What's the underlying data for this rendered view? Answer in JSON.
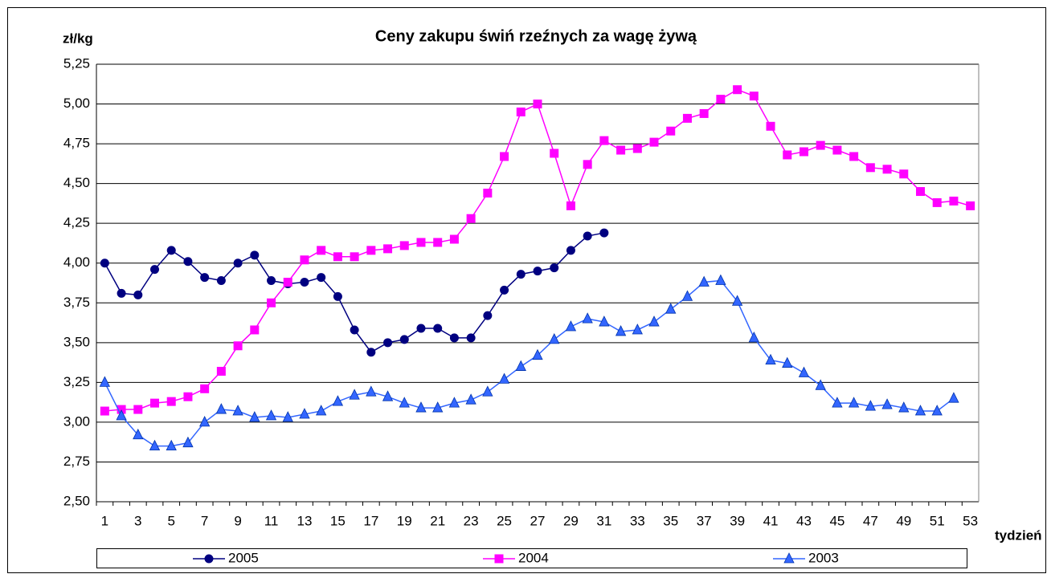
{
  "chart_data": {
    "type": "line",
    "title": "Ceny zakupu świń rzeźnych za wagę żywą",
    "y_label": "zł/kg",
    "x_label": "tydzień",
    "categories": [
      1,
      null,
      3,
      null,
      5,
      null,
      7,
      null,
      9,
      null,
      11,
      null,
      13,
      null,
      15,
      null,
      17,
      null,
      19,
      null,
      21,
      null,
      23,
      null,
      25,
      null,
      27,
      null,
      29,
      null,
      31,
      null,
      33,
      null,
      35,
      null,
      37,
      null,
      39,
      null,
      41,
      null,
      43,
      null,
      45,
      null,
      47,
      null,
      49,
      null,
      51,
      null,
      53
    ],
    "ylim": [
      2.5,
      5.25
    ],
    "yticks": [
      {
        "value": 2.5,
        "label": "2,50"
      },
      {
        "value": 2.75,
        "label": "2,75"
      },
      {
        "value": 3,
        "label": "3,00"
      },
      {
        "value": 3.25,
        "label": "3,25"
      },
      {
        "value": 3.5,
        "label": "3,50"
      },
      {
        "value": 3.75,
        "label": "3,75"
      },
      {
        "value": 4,
        "label": "4,00"
      },
      {
        "value": 4.25,
        "label": "4,25"
      },
      {
        "value": 4.5,
        "label": "4,50"
      },
      {
        "value": 4.75,
        "label": "4,75"
      },
      {
        "value": 5,
        "label": "5,00"
      },
      {
        "value": 5.25,
        "label": "5,25"
      }
    ],
    "grid": true,
    "legend": "bottom",
    "series": [
      {
        "name": "2005",
        "color": "#000080",
        "marker": "circle",
        "values": [
          4.0,
          3.81,
          3.8,
          3.96,
          4.08,
          4.01,
          3.91,
          3.89,
          4.0,
          4.05,
          3.89,
          3.87,
          3.88,
          3.91,
          3.79,
          3.58,
          3.44,
          3.5,
          3.52,
          3.59,
          3.59,
          3.53,
          3.53,
          3.67,
          3.83,
          3.93,
          3.95,
          3.97,
          4.08,
          4.17,
          4.19,
          null,
          null,
          null,
          null,
          null,
          null,
          null,
          null,
          null,
          null,
          null,
          null,
          null,
          null,
          null,
          null,
          null,
          null,
          null,
          null,
          null,
          null
        ]
      },
      {
        "name": "2004",
        "color": "#ff00ff",
        "marker": "square",
        "values": [
          3.07,
          3.08,
          3.08,
          3.12,
          3.13,
          3.16,
          3.21,
          3.32,
          3.48,
          3.58,
          3.75,
          3.88,
          4.02,
          4.08,
          4.04,
          4.04,
          4.08,
          4.09,
          4.11,
          4.13,
          4.13,
          4.15,
          4.28,
          4.44,
          4.67,
          4.95,
          5.0,
          4.69,
          4.36,
          4.62,
          4.77,
          4.71,
          4.72,
          4.76,
          4.83,
          4.91,
          4.94,
          5.03,
          5.09,
          5.05,
          4.86,
          4.68,
          4.7,
          4.74,
          4.71,
          4.67,
          4.6,
          4.59,
          4.56,
          4.45,
          4.38,
          4.39,
          4.36
        ]
      },
      {
        "name": "2003",
        "color": "#3366ff",
        "marker": "triangle",
        "values": [
          3.25,
          3.04,
          2.92,
          2.85,
          2.85,
          2.87,
          3.0,
          3.08,
          3.07,
          3.03,
          3.04,
          3.03,
          3.05,
          3.07,
          3.13,
          3.17,
          3.19,
          3.16,
          3.12,
          3.09,
          3.09,
          3.12,
          3.14,
          3.19,
          3.27,
          3.35,
          3.42,
          3.52,
          3.6,
          3.65,
          3.63,
          3.57,
          3.58,
          3.63,
          3.71,
          3.79,
          3.88,
          3.89,
          3.76,
          3.53,
          3.39,
          3.37,
          3.31,
          3.23,
          3.12,
          3.12,
          3.1,
          3.11,
          3.09,
          3.07,
          3.07,
          3.15,
          null
        ]
      }
    ]
  }
}
